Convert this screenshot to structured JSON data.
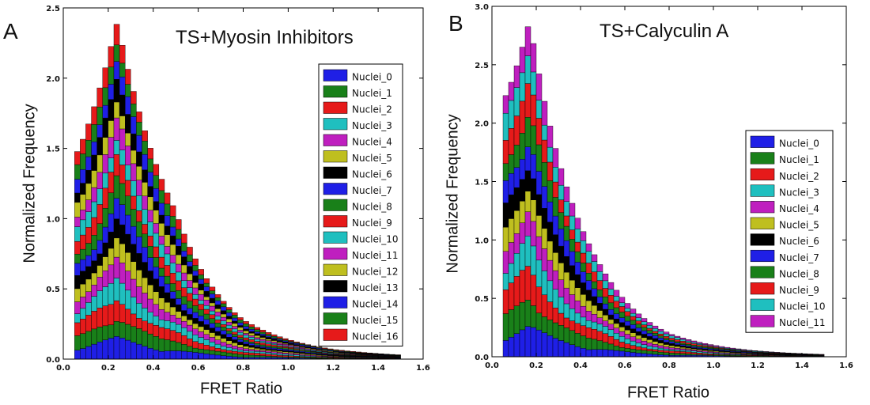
{
  "colors": [
    "#1f1fe6",
    "#198019",
    "#e61a1a",
    "#1fbfbf",
    "#bf1fbf",
    "#bfbf1f",
    "#000000"
  ],
  "chart_data": [
    {
      "panel": "A",
      "type": "bar",
      "stacked": true,
      "title": "TS+Myosin Inhibitors",
      "xlabel": "FRET Ratio",
      "ylabel": "Normalized Frequency",
      "xlim": [
        0.0,
        1.6
      ],
      "ylim": [
        0.0,
        2.5
      ],
      "xticks": [
        "0.0",
        "0.2",
        "0.4",
        "0.6",
        "0.8",
        "1.0",
        "1.2",
        "1.4",
        "1.6"
      ],
      "yticks": [
        "0.0",
        "0.5",
        "1.0",
        "1.5",
        "2.0",
        "2.5"
      ],
      "legend_position": "right",
      "bin_range": [
        0.05,
        1.5
      ],
      "peak_x": 0.24,
      "total_envelope": {
        "start": 1.45,
        "peak": 2.4,
        "at_0_5": 1.05,
        "at_0_8": 0.28,
        "at_1_2": 0.07,
        "at_1_5": 0.03
      },
      "series": [
        {
          "name": "Nuclei_0"
        },
        {
          "name": "Nuclei_1"
        },
        {
          "name": "Nuclei_2"
        },
        {
          "name": "Nuclei_3"
        },
        {
          "name": "Nuclei_4"
        },
        {
          "name": "Nuclei_5"
        },
        {
          "name": "Nuclei_6"
        },
        {
          "name": "Nuclei_7"
        },
        {
          "name": "Nuclei_8"
        },
        {
          "name": "Nuclei_9"
        },
        {
          "name": "Nuclei_10"
        },
        {
          "name": "Nuclei_11"
        },
        {
          "name": "Nuclei_12"
        },
        {
          "name": "Nuclei_13"
        },
        {
          "name": "Nuclei_14"
        },
        {
          "name": "Nuclei_15"
        },
        {
          "name": "Nuclei_16"
        }
      ]
    },
    {
      "panel": "B",
      "type": "bar",
      "stacked": true,
      "title": "TS+Calyculin A",
      "xlabel": "FRET Ratio",
      "ylabel": "Normalized Frequency",
      "xlim": [
        0.0,
        1.6
      ],
      "ylim": [
        0.0,
        3.0
      ],
      "xticks": [
        "0.0",
        "0.2",
        "0.4",
        "0.6",
        "0.8",
        "1.0",
        "1.2",
        "1.4",
        "1.6"
      ],
      "yticks": [
        "0.0",
        "0.5",
        "1.0",
        "1.5",
        "2.0",
        "2.5",
        "3.0"
      ],
      "legend_position": "center-right",
      "bin_range": [
        0.05,
        1.5
      ],
      "peak_x": 0.17,
      "total_envelope": {
        "start": 2.2,
        "peak": 2.88,
        "at_0_5": 0.75,
        "at_0_8": 0.2,
        "at_1_2": 0.05,
        "at_1_5": 0.02
      },
      "series": [
        {
          "name": "Nuclei_0"
        },
        {
          "name": "Nuclei_1"
        },
        {
          "name": "Nuclei_2"
        },
        {
          "name": "Nuclei_3"
        },
        {
          "name": "Nuclei_4"
        },
        {
          "name": "Nuclei_5"
        },
        {
          "name": "Nuclei_6"
        },
        {
          "name": "Nuclei_7"
        },
        {
          "name": "Nuclei_8"
        },
        {
          "name": "Nuclei_9"
        },
        {
          "name": "Nuclei_10"
        },
        {
          "name": "Nuclei_11"
        }
      ]
    }
  ]
}
